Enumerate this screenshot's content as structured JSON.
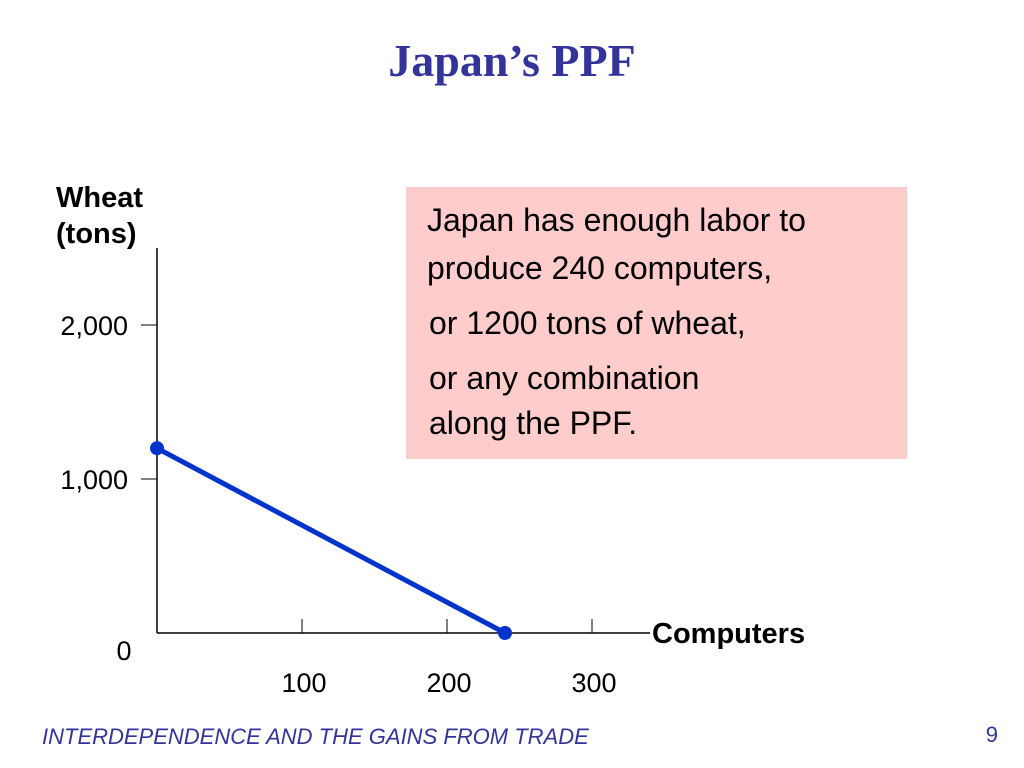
{
  "slide": {
    "title": "Japan’s PPF",
    "footer": "INTERDEPENDENCE AND THE GAINS FROM TRADE",
    "page_number": "9"
  },
  "callout": {
    "lines": [
      "Japan has enough labor to",
      "produce 240 computers,",
      "or 1200 tons of wheat,",
      "or any combination",
      "along the PPF."
    ]
  },
  "chart_data": {
    "type": "line",
    "title": "Japan’s PPF",
    "xlabel": "Computers",
    "ylabel_lines": [
      "Wheat",
      "(tons)"
    ],
    "xlim": [
      0,
      340
    ],
    "ylim": [
      0,
      2000
    ],
    "x_ticks": [
      100,
      200,
      300
    ],
    "x_tick_labels": [
      "100",
      "200",
      "300"
    ],
    "y_ticks": [
      1000,
      2000
    ],
    "y_tick_labels": [
      "1,000",
      "2,000"
    ],
    "origin_label": "0",
    "grid": false,
    "series": [
      {
        "points": [
          [
            0,
            1200
          ],
          [
            240,
            0
          ]
        ],
        "color": "#0033cc"
      }
    ]
  }
}
